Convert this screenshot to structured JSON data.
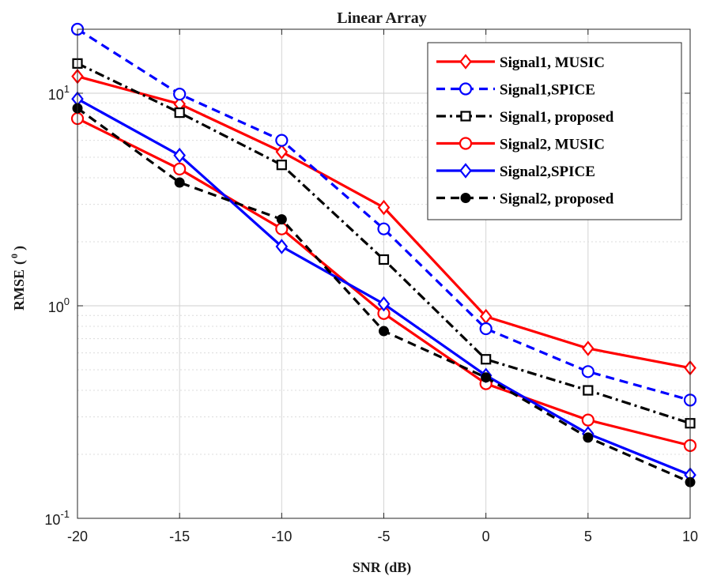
{
  "chart_data": {
    "type": "line",
    "title": "Linear Array",
    "xlabel": "SNR (dB)",
    "ylabel": "RMSE",
    "ylabel_unit_base": "(",
    "ylabel_unit_sup": "0",
    "ylabel_unit_end": ")",
    "x": [
      -20,
      -15,
      -10,
      -5,
      0,
      5,
      10
    ],
    "xlim": [
      -20,
      10
    ],
    "ylim": [
      0.1,
      20
    ],
    "yscale": "log",
    "grid": true,
    "legend_position": "top-right",
    "x_ticks": [
      "-20",
      "-15",
      "-10",
      "-5",
      "0",
      "5",
      "10"
    ],
    "y_ticks": [
      {
        "base": "10",
        "exp": "-1",
        "value": 0.1
      },
      {
        "base": "10",
        "exp": "0",
        "value": 1
      },
      {
        "base": "10",
        "exp": "1",
        "value": 10
      }
    ],
    "series": [
      {
        "name": "Signal1, MUSIC",
        "color": "#ff0000",
        "dash": "solid",
        "marker": "diamond",
        "values": [
          12,
          8.9,
          5.3,
          2.9,
          0.89,
          0.63,
          0.51
        ]
      },
      {
        "name": "Signal1,SPICE",
        "color": "#0000ff",
        "dash": "dash",
        "marker": "circle",
        "values": [
          20,
          9.9,
          6.0,
          2.3,
          0.78,
          0.49,
          0.36
        ]
      },
      {
        "name": "Signal1, proposed",
        "color": "#000000",
        "dash": "dashdot",
        "marker": "square",
        "values": [
          13.8,
          8.1,
          4.6,
          1.65,
          0.56,
          0.4,
          0.28
        ]
      },
      {
        "name": "Signal2, MUSIC",
        "color": "#ff0000",
        "dash": "solid",
        "marker": "circle",
        "values": [
          7.6,
          4.4,
          2.3,
          0.92,
          0.43,
          0.29,
          0.22
        ]
      },
      {
        "name": "Signal2,SPICE",
        "color": "#0000ff",
        "dash": "solid",
        "marker": "diamond",
        "values": [
          9.4,
          5.1,
          1.9,
          1.02,
          0.47,
          0.25,
          0.16
        ]
      },
      {
        "name": "Signal2, proposed",
        "color": "#000000",
        "dash": "dash",
        "marker": "dot",
        "values": [
          8.5,
          3.8,
          2.55,
          0.76,
          0.46,
          0.24,
          0.148
        ]
      }
    ]
  }
}
